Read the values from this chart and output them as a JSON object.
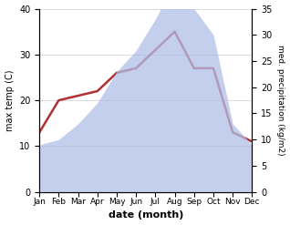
{
  "months": [
    "Jan",
    "Feb",
    "Mar",
    "Apr",
    "May",
    "Jun",
    "Jul",
    "Aug",
    "Sep",
    "Oct",
    "Nov",
    "Dec"
  ],
  "max_temp": [
    13,
    20,
    21,
    22,
    26,
    27,
    31,
    35,
    27,
    27,
    13,
    11
  ],
  "precipitation": [
    9,
    10,
    13,
    17,
    23,
    27,
    33,
    40,
    35,
    30,
    13,
    9
  ],
  "temp_ylim": [
    0,
    40
  ],
  "precip_ylim": [
    0,
    35
  ],
  "temp_yticks": [
    0,
    10,
    20,
    30,
    40
  ],
  "precip_yticks": [
    0,
    5,
    10,
    15,
    20,
    25,
    30,
    35
  ],
  "fill_color": "#b0bee8",
  "fill_alpha": 0.75,
  "line_color": "#b03030",
  "line_width": 1.8,
  "xlabel": "date (month)",
  "ylabel_left": "max temp (C)",
  "ylabel_right": "med. precipitation (kg/m2)",
  "background_color": "#ffffff",
  "grid_color": "#cccccc"
}
